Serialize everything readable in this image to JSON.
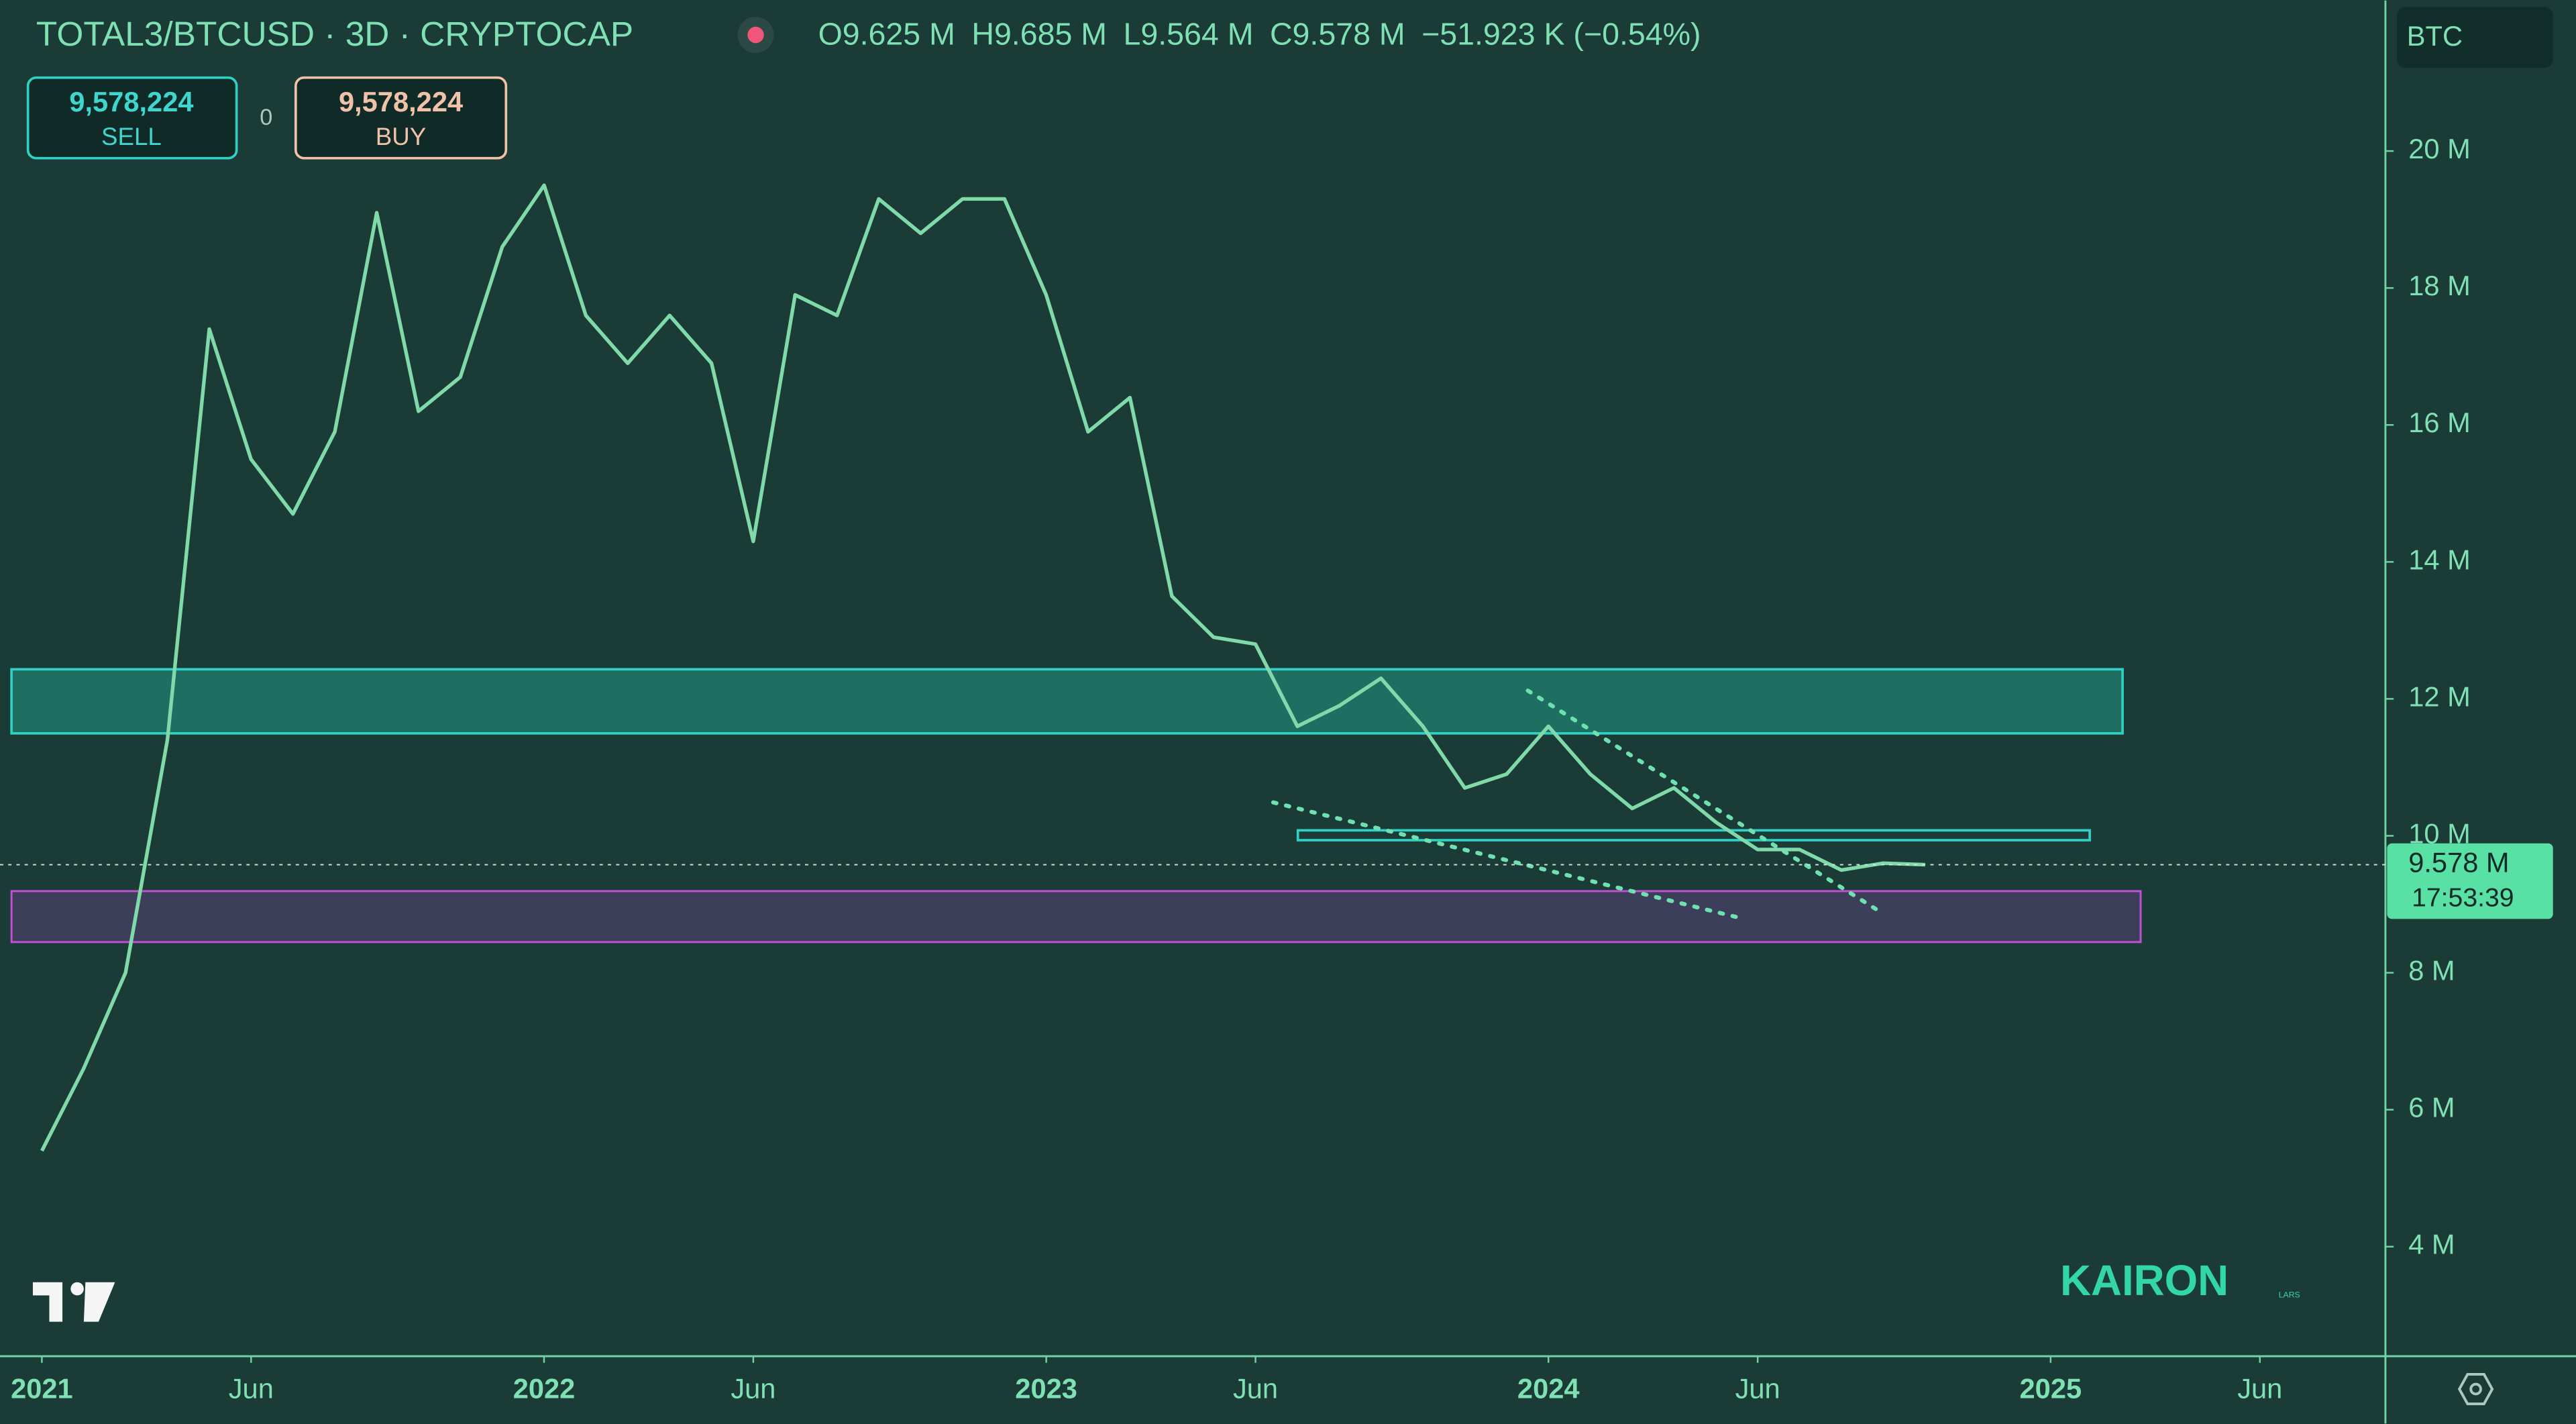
{
  "header": {
    "symbol": "TOTAL3/BTCUSD · 3D · CRYPTOCAP",
    "open_label": "O",
    "open": "9.625 M",
    "high_label": "H",
    "high": "9.685 M",
    "low_label": "L",
    "low": "9.564 M",
    "close_label": "C",
    "close": "9.578 M",
    "change": "−51.923 K (−0.54%)",
    "currency": "BTC"
  },
  "trade": {
    "sell_price": "9,578,224",
    "sell": "SELL",
    "spread": "0",
    "buy_price": "9,578,224",
    "buy": "BUY"
  },
  "price_tag": {
    "price": "9.578 M",
    "countdown": "17:53:39"
  },
  "watermark": {
    "brand": "KAIRON",
    "sub": "LARS"
  },
  "chart_data": {
    "type": "line",
    "color": "#7fd9a8",
    "x": [
      "2021-01",
      "2021-02",
      "2021-03",
      "2021-04",
      "2021-05",
      "2021-06",
      "2021-07",
      "2021-08",
      "2021-09",
      "2021-10",
      "2021-11",
      "2021-12",
      "2022-01",
      "2022-02",
      "2022-03",
      "2022-04",
      "2022-05",
      "2022-06",
      "2022-07",
      "2022-08",
      "2022-09",
      "2022-10",
      "2022-11",
      "2022-12",
      "2023-01",
      "2023-02",
      "2023-03",
      "2023-04",
      "2023-05",
      "2023-06",
      "2023-07",
      "2023-08",
      "2023-09",
      "2023-10",
      "2023-11",
      "2023-12",
      "2024-01",
      "2024-02",
      "2024-03",
      "2024-04",
      "2024-05",
      "2024-06",
      "2024-07",
      "2024-08",
      "2024-09",
      "2024-10"
    ],
    "values": [
      5.4,
      6.6,
      8.0,
      11.4,
      17.4,
      15.5,
      14.7,
      15.9,
      19.1,
      16.2,
      16.7,
      18.6,
      19.5,
      17.6,
      16.9,
      17.6,
      16.9,
      14.3,
      17.9,
      17.6,
      19.3,
      18.8,
      19.3,
      19.3,
      17.9,
      15.9,
      16.4,
      13.5,
      12.9,
      12.8,
      11.6,
      11.9,
      12.3,
      11.6,
      10.7,
      10.9,
      11.6,
      10.9,
      10.4,
      10.7,
      10.2,
      9.8,
      9.8,
      9.5,
      9.6,
      9.578
    ],
    "xlim": [
      "2020-12",
      "2025-09"
    ],
    "xticks": [
      {
        "value": "2021-01",
        "label": "2021"
      },
      {
        "value": "2021-06",
        "label": "Jun"
      },
      {
        "value": "2022-01",
        "label": "2022"
      },
      {
        "value": "2022-06",
        "label": "Jun"
      },
      {
        "value": "2023-01",
        "label": "2023"
      },
      {
        "value": "2023-06",
        "label": "Jun"
      },
      {
        "value": "2024-01",
        "label": "2024"
      },
      {
        "value": "2024-06",
        "label": "Jun"
      },
      {
        "value": "2025-01",
        "label": "2025"
      },
      {
        "value": "2025-06",
        "label": "Jun"
      }
    ],
    "ylim": [
      2.4,
      22.2
    ],
    "yticks": [
      {
        "value": 4,
        "label": "4 M"
      },
      {
        "value": 6,
        "label": "6 M"
      },
      {
        "value": 8,
        "label": "8 M"
      },
      {
        "value": 10,
        "label": "10 M"
      },
      {
        "value": 12,
        "label": "12 M"
      },
      {
        "value": 14,
        "label": "14 M"
      },
      {
        "value": 16,
        "label": "16 M"
      },
      {
        "value": 18,
        "label": "18 M"
      },
      {
        "value": 20,
        "label": "20 M"
      }
    ]
  }
}
